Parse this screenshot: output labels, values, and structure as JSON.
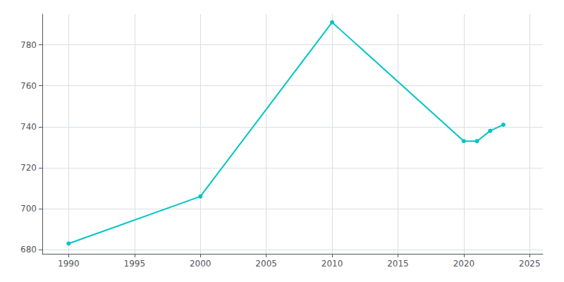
{
  "chart_data": {
    "type": "line",
    "x": [
      1990,
      2000,
      2010,
      2020,
      2021,
      2022,
      2023
    ],
    "values": [
      683,
      706,
      791,
      733,
      733,
      738,
      741
    ],
    "color": "#00C4C4",
    "marker": "circle",
    "xlim": [
      1988,
      2026
    ],
    "ylim": [
      678,
      795
    ],
    "xticks": [
      1990,
      1995,
      2000,
      2005,
      2010,
      2015,
      2020,
      2025
    ],
    "yticks": [
      680,
      700,
      720,
      740,
      760,
      780
    ],
    "grid": true
  }
}
